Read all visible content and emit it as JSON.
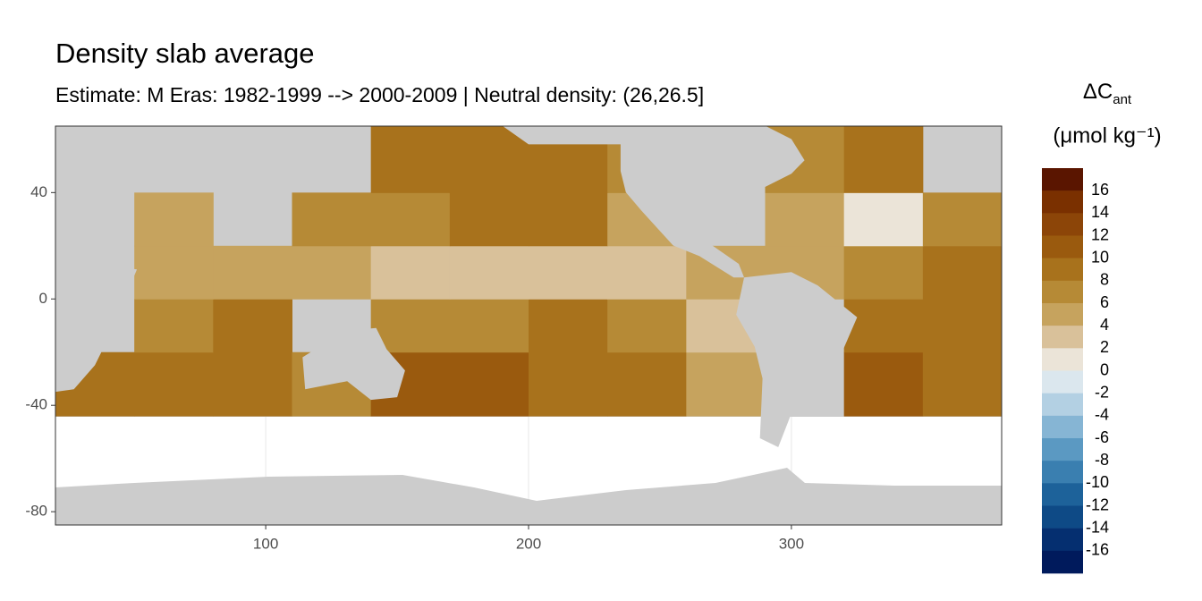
{
  "chart_data": {
    "type": "raster",
    "title": "Density slab average",
    "subtitle": "Estimate: M Eras: 1982-1999 --> 2000-2009 | Neutral density: (26,26.5]",
    "legend_title": "ΔC",
    "legend_title_sub": "ant",
    "legend_unit": "(μmol kg⁻¹)",
    "xlim": [
      20,
      380
    ],
    "ylim": [
      -85,
      65
    ],
    "xticks": [
      100,
      200,
      300
    ],
    "yticks": [
      -80,
      -40,
      0,
      40
    ],
    "grid": true,
    "x_bins": [
      20,
      50,
      80,
      110,
      140,
      170,
      200,
      230,
      260,
      290,
      320,
      350,
      380
    ],
    "y_bins": [
      -44,
      -20,
      0,
      20,
      40,
      65
    ],
    "values": [
      [
        9,
        10,
        10,
        8,
        11,
        12,
        10,
        9,
        5,
        null,
        12,
        10
      ],
      [
        null,
        8,
        9,
        null,
        8,
        8,
        9,
        7,
        4,
        null,
        10,
        9
      ],
      [
        null,
        5,
        5,
        6,
        4,
        3,
        3,
        4,
        6,
        6,
        8,
        9
      ],
      [
        null,
        6,
        null,
        8,
        8,
        9,
        10,
        6,
        null,
        5,
        2,
        8
      ],
      [
        null,
        null,
        null,
        null,
        9,
        10,
        9,
        8,
        null,
        8,
        10,
        null
      ]
    ],
    "colorbar": {
      "bins": [
        18,
        16,
        14,
        12,
        10,
        8,
        6,
        4,
        2,
        0,
        -2,
        -4,
        -6,
        -8,
        -10,
        -12,
        -14,
        -16,
        -18
      ],
      "colors": [
        "#5a1500",
        "#7a3000",
        "#8c4508",
        "#9a5a0e",
        "#a8721c",
        "#b68a36",
        "#c6a35e",
        "#d9c19a",
        "#ebe4d8",
        "#dbe7ee",
        "#b3d0e3",
        "#86b5d4",
        "#5b99c2",
        "#3a7fb0",
        "#1d629a",
        "#0e4a86",
        "#052f70",
        "#001a5c"
      ],
      "ticks": [
        16,
        14,
        12,
        10,
        8,
        6,
        4,
        2,
        0,
        -2,
        -4,
        -6,
        -8,
        -10,
        -12,
        -14,
        -16
      ]
    }
  }
}
